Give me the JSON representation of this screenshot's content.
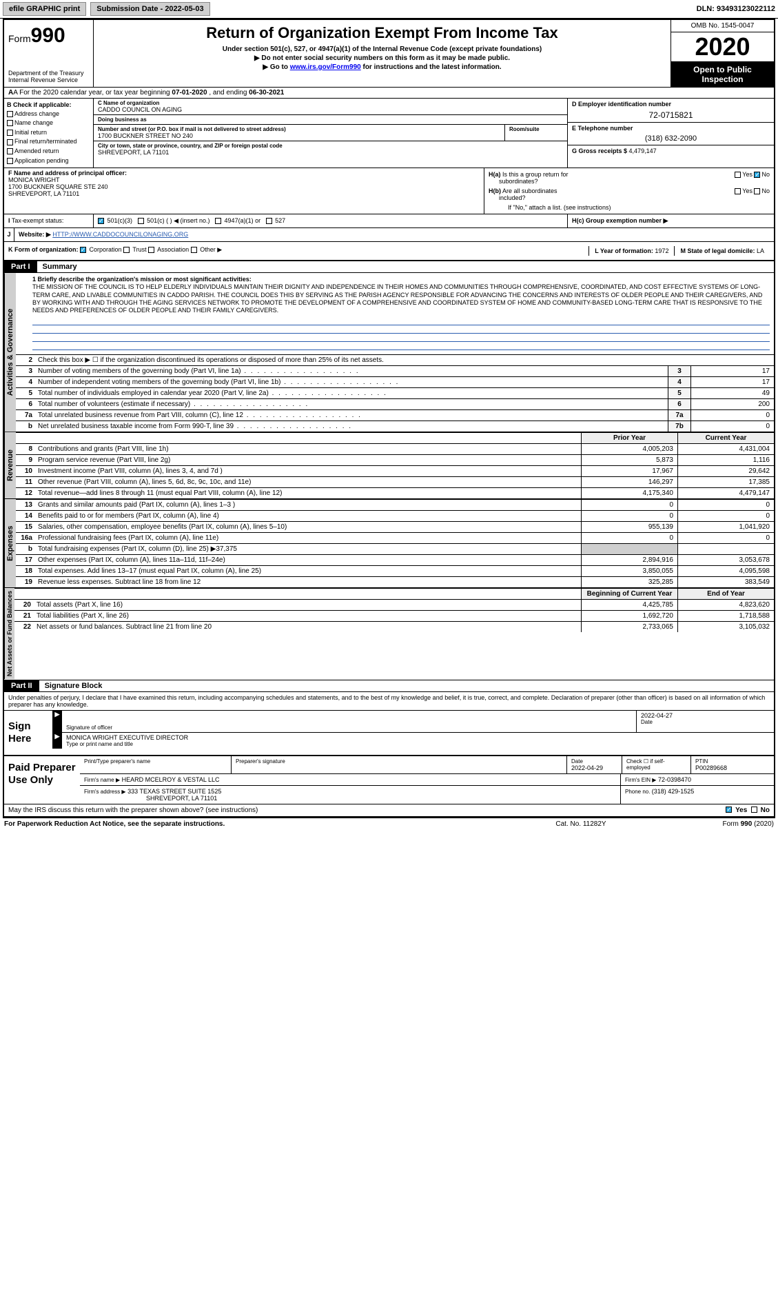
{
  "topbar": {
    "efile": "efile GRAPHIC print",
    "submission": "Submission Date - 2022-05-03",
    "dln": "DLN: 93493123022112"
  },
  "header": {
    "form_prefix": "Form",
    "form_num": "990",
    "title": "Return of Organization Exempt From Income Tax",
    "sub1": "Under section 501(c), 527, or 4947(a)(1) of the Internal Revenue Code (except private foundations)",
    "sub2": "▶ Do not enter social security numbers on this form as it may be made public.",
    "sub3_pre": "▶ Go to ",
    "sub3_link": "www.irs.gov/Form990",
    "sub3_post": " for instructions and the latest information.",
    "dept1": "Department of the Treasury",
    "dept2": "Internal Revenue Service",
    "omb": "OMB No. 1545-0047",
    "year": "2020",
    "open_pub": "Open to Public Inspection"
  },
  "period": {
    "a_pre": "A For the 2020 calendar year, or tax year beginning ",
    "begin": "07-01-2020",
    "mid": " , and ending ",
    "end": "06-30-2021"
  },
  "blockB": {
    "label": "B Check if applicable:",
    "items": [
      "Address change",
      "Name change",
      "Initial return",
      "Final return/terminated",
      "Amended return",
      "Application pending"
    ]
  },
  "blockC": {
    "name_lbl": "C Name of organization",
    "name": "CADDO COUNCIL ON AGING",
    "dba_lbl": "Doing business as",
    "dba": "",
    "addr_lbl": "Number and street (or P.O. box if mail is not delivered to street address)",
    "addr": "1700 BUCKNER STREET NO 240",
    "room_lbl": "Room/suite",
    "city_lbl": "City or town, state or province, country, and ZIP or foreign postal code",
    "city": "SHREVEPORT, LA  71101"
  },
  "blockD": {
    "lbl": "D Employer identification number",
    "val": "72-0715821"
  },
  "blockE": {
    "lbl": "E Telephone number",
    "val": "(318) 632-2090"
  },
  "blockG": {
    "pre": "G Gross receipts $ ",
    "val": "4,479,147"
  },
  "blockF": {
    "lbl": "F Name and address of principal officer:",
    "name": "MONICA WRIGHT",
    "addr1": "1700 BUCKNER SQUARE STE 240",
    "addr2": "SHREVEPORT, LA  71101"
  },
  "blockH": {
    "ha": "H(a) Is this a group return for subordinates?",
    "ha_yes": "Yes",
    "ha_no": "No",
    "hb": "H(b) Are all subordinates included?",
    "hb_yes": "Yes",
    "hb_no": "No",
    "hb_note": "If \"No,\" attach a list. (see instructions)",
    "hc": "H(c) Group exemption number ▶"
  },
  "blockI": {
    "lbl": "Tax-exempt status:",
    "o1": "501(c)(3)",
    "o2": "501(c) (   ) ◀ (insert no.)",
    "o3": "4947(a)(1) or",
    "o4": "527"
  },
  "blockJ": {
    "lbl": "Website: ▶",
    "val": "HTTP://WWW.CADDOCOUNCILONAGING.ORG"
  },
  "blockK": {
    "lbl": "K Form of organization:",
    "o1": "Corporation",
    "o2": "Trust",
    "o3": "Association",
    "o4": "Other ▶"
  },
  "blockL": {
    "lbl": "L Year of formation: ",
    "val": "1972"
  },
  "blockM": {
    "lbl": "M State of legal domicile: ",
    "val": "LA"
  },
  "part1": {
    "hdr": "Part I",
    "title": "Summary",
    "l1_lbl": "1  Briefly describe the organization's mission or most significant activities:",
    "mission": "THE MISSION OF THE COUNCIL IS TO HELP ELDERLY INDIVIDUALS MAINTAIN THEIR DIGNITY AND INDEPENDENCE IN THEIR HOMES AND COMMUNITIES THROUGH COMPREHENSIVE, COORDINATED, AND COST EFFECTIVE SYSTEMS OF LONG-TERM CARE, AND LIVABLE COMMUNITIES IN CADDO PARISH. THE COUNCIL DOES THIS BY SERVING AS THE PARISH AGENCY RESPONSIBLE FOR ADVANCING THE CONCERNS AND INTERESTS OF OLDER PEOPLE AND THEIR CAREGIVERS, AND BY WORKING WITH AND THROUGH THE AGING SERVICES NETWORK TO PROMOTE THE DEVELOPMENT OF A COMPREHENSIVE AND COORDINATED SYSTEM OF HOME AND COMMUNITY-BASED LONG-TERM CARE THAT IS RESPONSIVE TO THE NEEDS AND PREFERENCES OF OLDER PEOPLE AND THEIR FAMILY CAREGIVERS.",
    "l2": "Check this box ▶ ☐ if the organization discontinued its operations or disposed of more than 25% of its net assets.",
    "rows_num": [
      {
        "n": "3",
        "desc": "Number of voting members of the governing body (Part VI, line 1a)",
        "box": "3",
        "val": "17"
      },
      {
        "n": "4",
        "desc": "Number of independent voting members of the governing body (Part VI, line 1b)",
        "box": "4",
        "val": "17"
      },
      {
        "n": "5",
        "desc": "Total number of individuals employed in calendar year 2020 (Part V, line 2a)",
        "box": "5",
        "val": "49"
      },
      {
        "n": "6",
        "desc": "Total number of volunteers (estimate if necessary)",
        "box": "6",
        "val": "200"
      },
      {
        "n": "7a",
        "desc": "Total unrelated business revenue from Part VIII, column (C), line 12",
        "box": "7a",
        "val": "0"
      },
      {
        "n": "b",
        "desc": "Net unrelated business taxable income from Form 990-T, line 39",
        "box": "7b",
        "val": "0"
      }
    ],
    "col_prior": "Prior Year",
    "col_curr": "Current Year",
    "revenue": [
      {
        "n": "8",
        "desc": "Contributions and grants (Part VIII, line 1h)",
        "c1": "4,005,203",
        "c2": "4,431,004"
      },
      {
        "n": "9",
        "desc": "Program service revenue (Part VIII, line 2g)",
        "c1": "5,873",
        "c2": "1,116"
      },
      {
        "n": "10",
        "desc": "Investment income (Part VIII, column (A), lines 3, 4, and 7d )",
        "c1": "17,967",
        "c2": "29,642"
      },
      {
        "n": "11",
        "desc": "Other revenue (Part VIII, column (A), lines 5, 6d, 8c, 9c, 10c, and 11e)",
        "c1": "146,297",
        "c2": "17,385"
      },
      {
        "n": "12",
        "desc": "Total revenue—add lines 8 through 11 (must equal Part VIII, column (A), line 12)",
        "c1": "4,175,340",
        "c2": "4,479,147"
      }
    ],
    "expenses": [
      {
        "n": "13",
        "desc": "Grants and similar amounts paid (Part IX, column (A), lines 1–3 )",
        "c1": "0",
        "c2": "0"
      },
      {
        "n": "14",
        "desc": "Benefits paid to or for members (Part IX, column (A), line 4)",
        "c1": "0",
        "c2": "0"
      },
      {
        "n": "15",
        "desc": "Salaries, other compensation, employee benefits (Part IX, column (A), lines 5–10)",
        "c1": "955,139",
        "c2": "1,041,920"
      },
      {
        "n": "16a",
        "desc": "Professional fundraising fees (Part IX, column (A), line 11e)",
        "c1": "0",
        "c2": "0"
      },
      {
        "n": "b",
        "desc": "Total fundraising expenses (Part IX, column (D), line 25) ▶37,375",
        "c1": "",
        "c2": "",
        "shade": true
      },
      {
        "n": "17",
        "desc": "Other expenses (Part IX, column (A), lines 11a–11d, 11f–24e)",
        "c1": "2,894,916",
        "c2": "3,053,678"
      },
      {
        "n": "18",
        "desc": "Total expenses. Add lines 13–17 (must equal Part IX, column (A), line 25)",
        "c1": "3,850,055",
        "c2": "4,095,598"
      },
      {
        "n": "19",
        "desc": "Revenue less expenses. Subtract line 18 from line 12",
        "c1": "325,285",
        "c2": "383,549"
      }
    ],
    "col_begin": "Beginning of Current Year",
    "col_end": "End of Year",
    "netassets": [
      {
        "n": "20",
        "desc": "Total assets (Part X, line 16)",
        "c1": "4,425,785",
        "c2": "4,823,620"
      },
      {
        "n": "21",
        "desc": "Total liabilities (Part X, line 26)",
        "c1": "1,692,720",
        "c2": "1,718,588"
      },
      {
        "n": "22",
        "desc": "Net assets or fund balances. Subtract line 21 from line 20",
        "c1": "2,733,065",
        "c2": "3,105,032"
      }
    ],
    "tab_gov": "Activities & Governance",
    "tab_rev": "Revenue",
    "tab_exp": "Expenses",
    "tab_net": "Net Assets or Fund Balances"
  },
  "part2": {
    "hdr": "Part II",
    "title": "Signature Block",
    "intro": "Under penalties of perjury, I declare that I have examined this return, including accompanying schedules and statements, and to the best of my knowledge and belief, it is true, correct, and complete. Declaration of preparer (other than officer) is based on all information of which preparer has any knowledge.",
    "sign_here": "Sign Here",
    "sig_lbl": "Signature of officer",
    "sig_date": "2022-04-27",
    "date_lbl": "Date",
    "officer": "MONICA WRIGHT EXECUTIVE DIRECTOR",
    "officer_lbl": "Type or print name and title",
    "paid": "Paid Preparer Use Only",
    "p_name_lbl": "Print/Type preparer's name",
    "p_sig_lbl": "Preparer's signature",
    "p_date_lbl": "Date",
    "p_date": "2022-04-29",
    "p_check": "Check ☐ if self-employed",
    "ptin_lbl": "PTIN",
    "ptin": "P00289668",
    "firm_lbl": "Firm's name    ▶",
    "firm": "HEARD MCELROY & VESTAL LLC",
    "ein_lbl": "Firm's EIN ▶",
    "ein": "72-0398470",
    "faddr_lbl": "Firm's address ▶",
    "faddr1": "333 TEXAS STREET SUITE 1525",
    "faddr2": "SHREVEPORT, LA  71101",
    "phone_lbl": "Phone no. ",
    "phone": "(318) 429-1525",
    "discuss": "May the IRS discuss this return with the preparer shown above? (see instructions)",
    "discuss_yes": "Yes",
    "discuss_no": "No"
  },
  "footer": {
    "left": "For Paperwork Reduction Act Notice, see the separate instructions.",
    "mid": "Cat. No. 11282Y",
    "right": "Form 990 (2020)"
  }
}
